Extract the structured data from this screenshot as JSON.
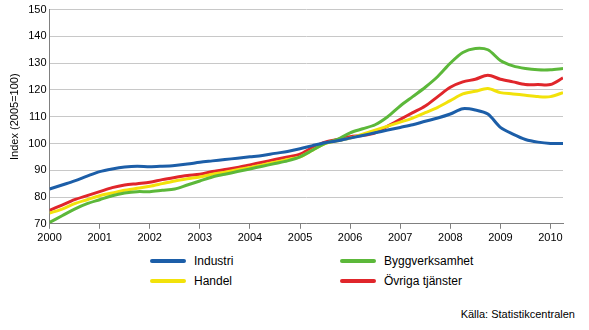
{
  "chart_data": {
    "type": "line",
    "y_label": "Index (2005=100)",
    "source": "Källa: Statistikcentralen",
    "x": [
      2000,
      2000.25,
      2000.5,
      2000.75,
      2001,
      2001.25,
      2001.5,
      2001.75,
      2002,
      2002.25,
      2002.5,
      2002.75,
      2003,
      2003.25,
      2003.5,
      2003.75,
      2004,
      2004.25,
      2004.5,
      2004.75,
      2005,
      2005.25,
      2005.5,
      2005.75,
      2006,
      2006.25,
      2006.5,
      2006.75,
      2007,
      2007.25,
      2007.5,
      2007.75,
      2008,
      2008.25,
      2008.5,
      2008.75,
      2009,
      2009.25,
      2009.5,
      2009.75,
      2010,
      2010.25
    ],
    "series": [
      {
        "name": "Industri",
        "color": "#1c5ea8",
        "values": [
          83,
          84.5,
          86,
          87.8,
          89.5,
          90.5,
          91.2,
          91.5,
          91.3,
          91.5,
          91.8,
          92.3,
          93,
          93.5,
          94,
          94.5,
          95,
          95.5,
          96.3,
          97,
          98,
          99.2,
          100.3,
          101,
          102,
          103,
          104,
          105,
          106,
          107,
          108.3,
          109.5,
          111,
          113,
          112.5,
          111,
          106,
          103.5,
          101.5,
          100.5,
          100,
          100
        ]
      },
      {
        "name": "Byggverksamhet",
        "color": "#5cb83a",
        "values": [
          70.5,
          73,
          75.5,
          77.5,
          79,
          80.5,
          81.5,
          82,
          82,
          82.5,
          83,
          84.5,
          86,
          87.5,
          88.5,
          89.5,
          90.5,
          91.5,
          92.5,
          93.5,
          95,
          97.5,
          100,
          101.5,
          104,
          105.5,
          107,
          110,
          114,
          117.5,
          121,
          125,
          130,
          134,
          135.5,
          135,
          131,
          129,
          128,
          127.5,
          127.5,
          128
        ]
      },
      {
        "name": "Handel",
        "color": "#f2e20a",
        "values": [
          74,
          75.5,
          77.5,
          79,
          80.5,
          81.5,
          82.5,
          83.3,
          84,
          85,
          86,
          86.8,
          87.5,
          88.5,
          89.3,
          90.2,
          91,
          92,
          93,
          94,
          95,
          97.5,
          100,
          101,
          102,
          103.5,
          105,
          106.5,
          108,
          109.5,
          111.5,
          113.5,
          116,
          118.5,
          119.5,
          120.5,
          119,
          118.5,
          118,
          117.5,
          117.5,
          119
        ]
      },
      {
        "name": "Övriga tjänster",
        "color": "#e0262b",
        "values": [
          75,
          77,
          79,
          80.5,
          82,
          83.5,
          84.5,
          85,
          85.5,
          86.5,
          87.3,
          88,
          88.5,
          89.5,
          90.3,
          91,
          92,
          93,
          94,
          95,
          96,
          98.5,
          100.5,
          101.5,
          102.5,
          103,
          104,
          106.5,
          109,
          111.5,
          114,
          117.5,
          121,
          123,
          124,
          125.5,
          124,
          123,
          122,
          122,
          122,
          124.5
        ]
      }
    ],
    "xlim": [
      2000,
      2010.25
    ],
    "xticks": [
      2000,
      2001,
      2002,
      2003,
      2004,
      2005,
      2006,
      2007,
      2008,
      2009,
      2010
    ],
    "ylim": [
      70,
      150
    ],
    "yticks": [
      70,
      80,
      90,
      100,
      110,
      120,
      130,
      140,
      150
    ],
    "grid": true,
    "legend": "bottom"
  }
}
